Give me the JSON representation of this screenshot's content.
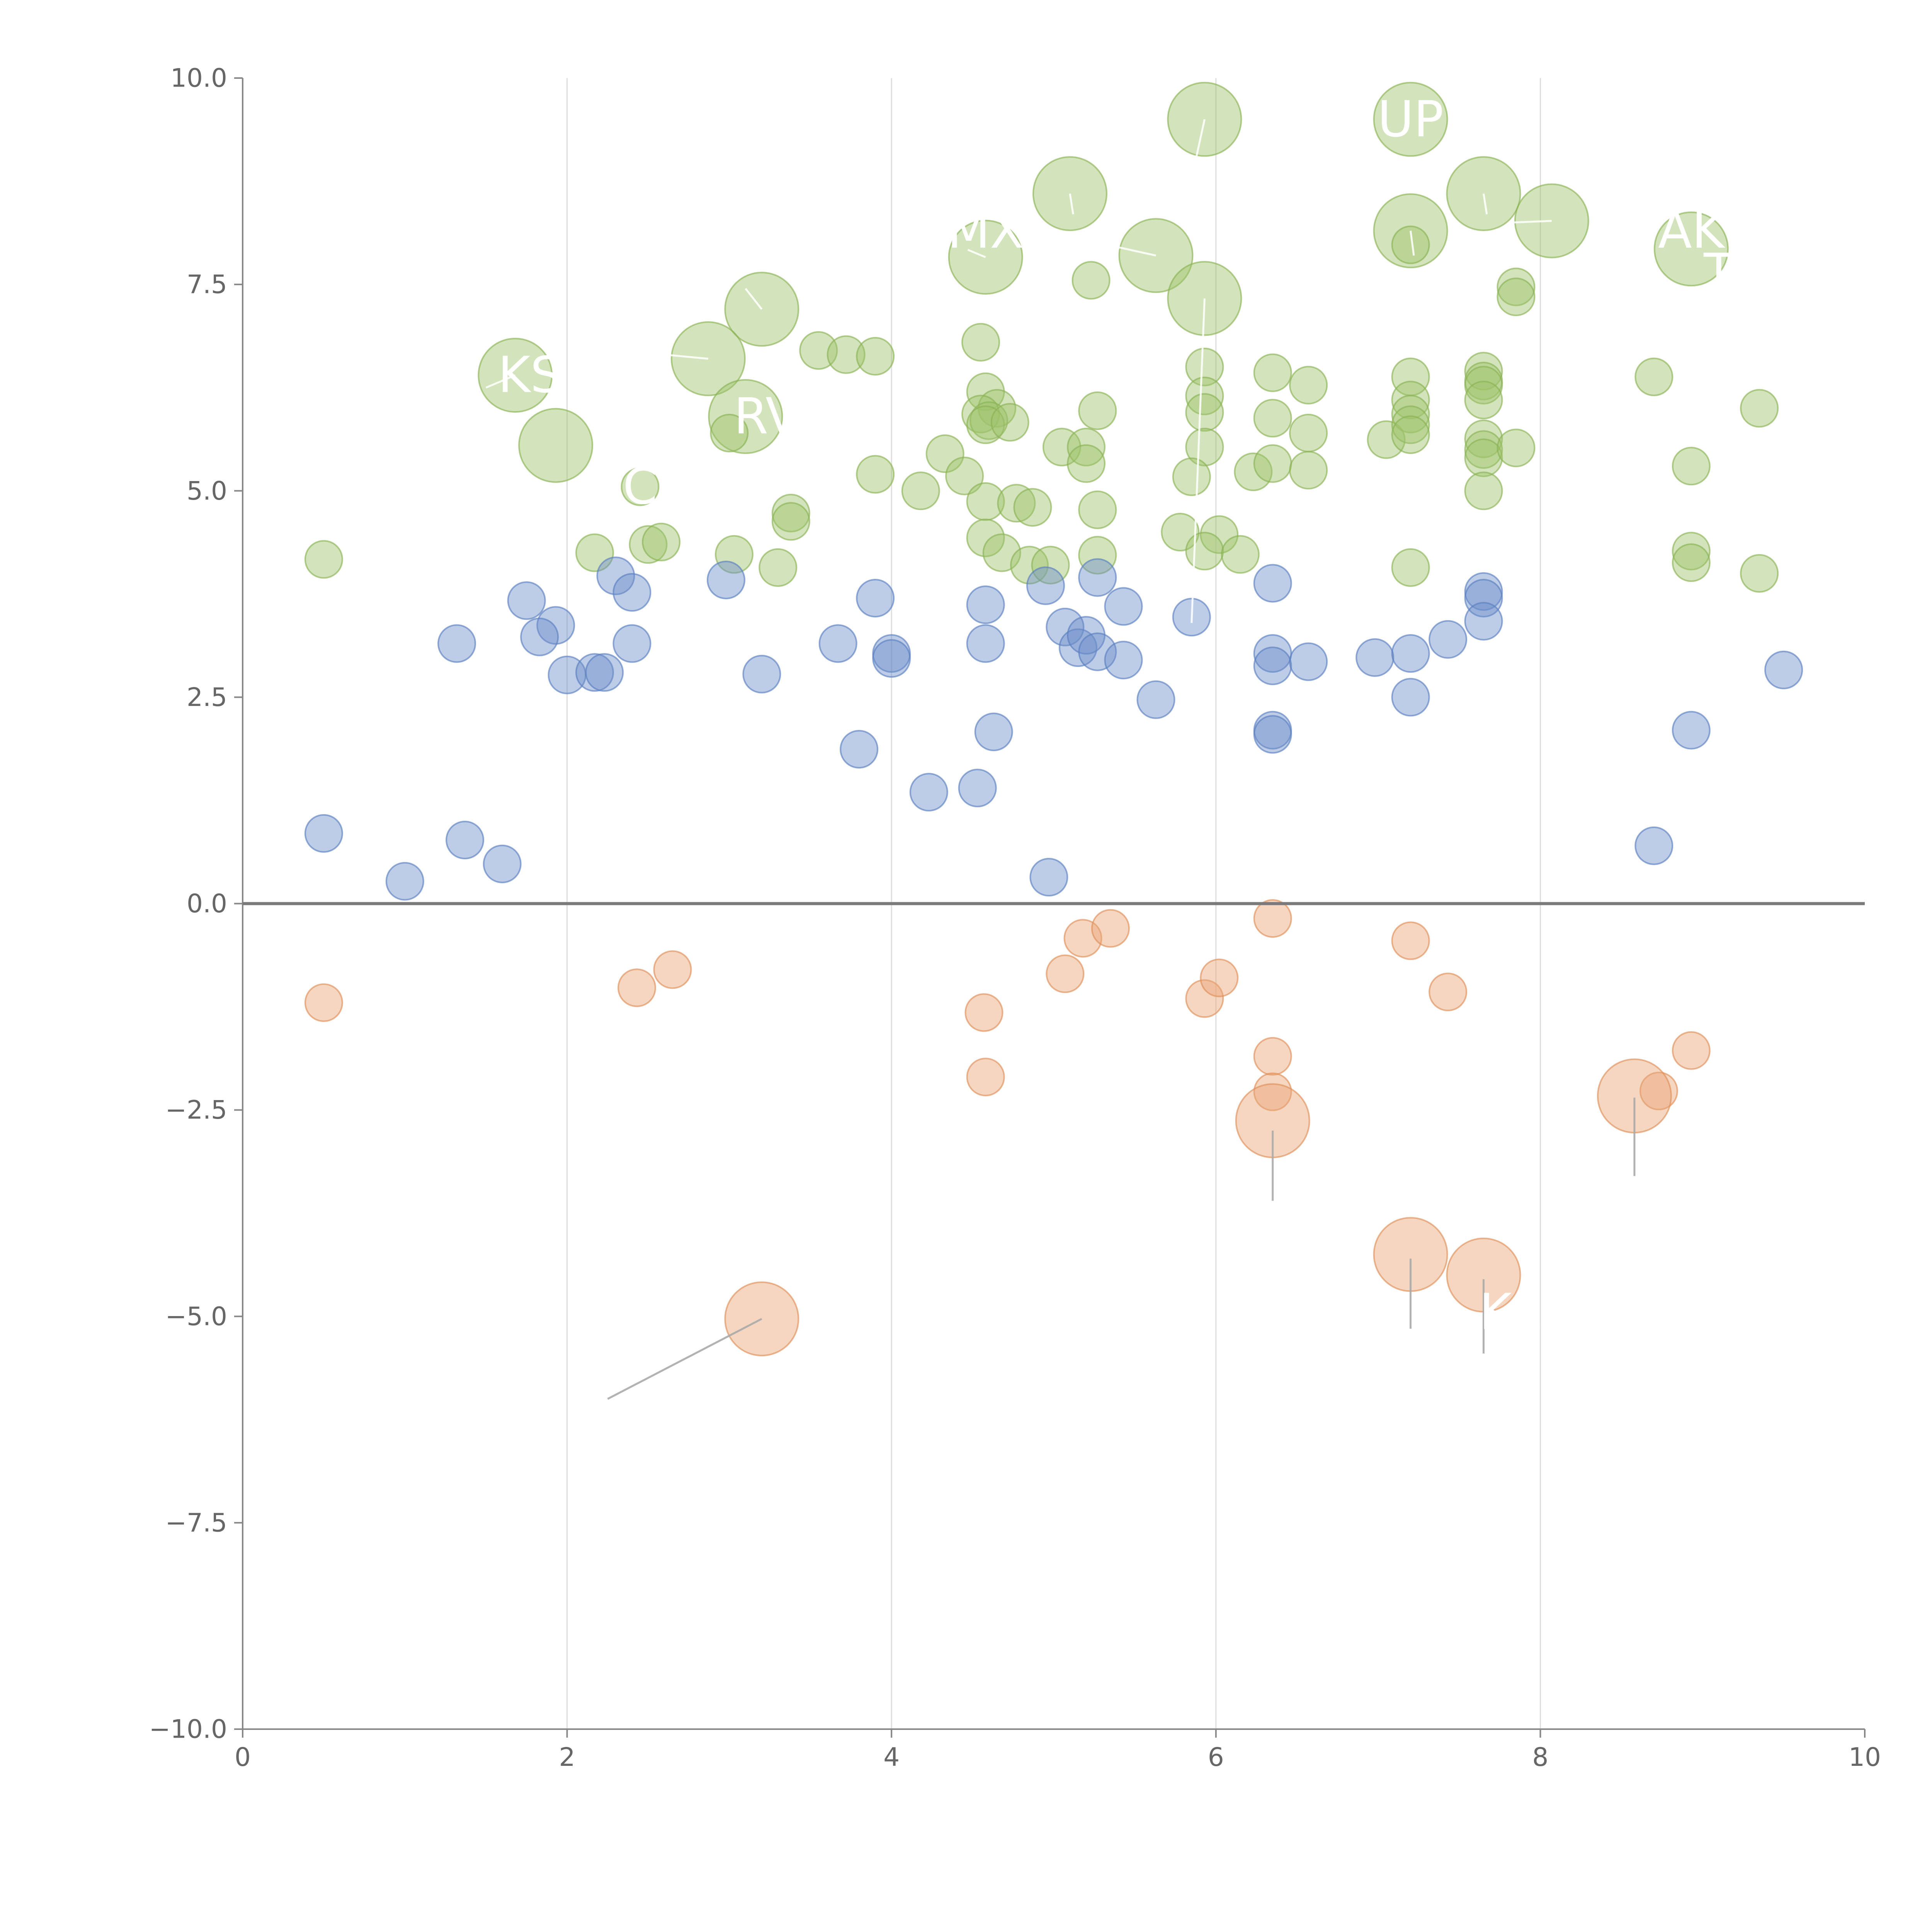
{
  "chart_data": {
    "type": "scatter",
    "title": "",
    "xlabel": "",
    "ylabel": "",
    "xlim": [
      0,
      10
    ],
    "ylim": [
      -10,
      10
    ],
    "x_ticks": [
      {
        "value": 0,
        "label": "0"
      },
      {
        "value": 2,
        "label": "2"
      },
      {
        "value": 4,
        "label": "4"
      },
      {
        "value": 6,
        "label": "6"
      },
      {
        "value": 8,
        "label": "8"
      },
      {
        "value": 10,
        "label": "10"
      }
    ],
    "y_ticks": [
      {
        "value": 10,
        "label": "10.0"
      },
      {
        "value": 7.5,
        "label": "7.5"
      },
      {
        "value": 5,
        "label": "5.0"
      },
      {
        "value": 2.5,
        "label": "2.5"
      },
      {
        "value": 0,
        "label": "0.0"
      },
      {
        "value": -2.5,
        "label": "−2.5"
      },
      {
        "value": -5,
        "label": "−5.0"
      },
      {
        "value": -7.5,
        "label": "−7.5"
      },
      {
        "value": -10,
        "label": "−10.0"
      }
    ],
    "vertical_gridlines_at": [
      2,
      4,
      6,
      8
    ],
    "zero_line": 0,
    "series": [
      {
        "name": "green",
        "color": "#9dc36b",
        "stroke": "#8ab255",
        "points": [
          [
            5.93,
            9.5,
            3
          ],
          [
            7.2,
            9.5,
            3
          ],
          [
            5.1,
            8.6,
            3
          ],
          [
            7.65,
            8.6,
            3
          ],
          [
            8.07,
            8.27,
            3
          ],
          [
            7.2,
            8.15,
            3
          ],
          [
            4.58,
            7.83,
            3
          ],
          [
            5.63,
            7.85,
            3
          ],
          [
            8.93,
            7.93,
            3
          ],
          [
            3.2,
            7.2,
            3
          ],
          [
            5.93,
            7.33,
            3
          ],
          [
            2.87,
            6.6,
            3
          ],
          [
            1.68,
            6.4,
            3
          ],
          [
            1.93,
            5.55,
            3
          ],
          [
            3.1,
            5.9,
            3
          ],
          [
            7.2,
            7.98,
            1
          ],
          [
            5.23,
            7.55,
            1
          ],
          [
            7.85,
            7.47,
            1
          ],
          [
            7.85,
            7.35,
            1
          ],
          [
            3.55,
            6.7,
            1
          ],
          [
            3.72,
            6.65,
            1
          ],
          [
            3.9,
            6.63,
            1
          ],
          [
            4.55,
            6.8,
            1
          ],
          [
            5.93,
            6.5,
            1
          ],
          [
            6.35,
            6.43,
            1
          ],
          [
            6.57,
            6.28,
            1
          ],
          [
            7.2,
            6.38,
            1
          ],
          [
            7.65,
            6.45,
            1
          ],
          [
            7.65,
            6.33,
            1
          ],
          [
            7.65,
            6.28,
            1
          ],
          [
            8.7,
            6.38,
            1
          ],
          [
            9.35,
            6.0,
            1
          ],
          [
            4.58,
            6.2,
            1
          ],
          [
            4.65,
            6.0,
            1
          ],
          [
            4.55,
            5.93,
            1
          ],
          [
            4.6,
            5.85,
            1
          ],
          [
            4.58,
            5.8,
            1
          ],
          [
            4.73,
            5.83,
            1
          ],
          [
            5.27,
            5.97,
            1
          ],
          [
            5.93,
            6.15,
            1
          ],
          [
            5.93,
            5.95,
            1
          ],
          [
            6.35,
            5.88,
            1
          ],
          [
            6.57,
            5.7,
            1
          ],
          [
            7.05,
            5.62,
            1
          ],
          [
            7.2,
            6.1,
            1
          ],
          [
            7.2,
            5.93,
            1
          ],
          [
            7.2,
            5.8,
            1
          ],
          [
            7.2,
            5.68,
            1
          ],
          [
            7.65,
            6.1,
            1
          ],
          [
            7.65,
            5.63,
            1
          ],
          [
            7.65,
            5.5,
            1
          ],
          [
            7.65,
            5.4,
            1
          ],
          [
            7.85,
            5.52,
            1
          ],
          [
            8.93,
            5.3,
            1
          ],
          [
            3.0,
            5.7,
            1
          ],
          [
            4.33,
            5.45,
            1
          ],
          [
            3.9,
            5.2,
            1
          ],
          [
            4.18,
            5.0,
            1
          ],
          [
            4.45,
            5.18,
            1
          ],
          [
            5.05,
            5.53,
            1
          ],
          [
            5.2,
            5.53,
            1
          ],
          [
            5.2,
            5.33,
            1
          ],
          [
            5.93,
            5.53,
            1
          ],
          [
            5.85,
            5.17,
            1
          ],
          [
            6.23,
            5.23,
            1
          ],
          [
            6.35,
            5.33,
            1
          ],
          [
            6.57,
            5.25,
            1
          ],
          [
            7.65,
            5.0,
            1
          ],
          [
            2.45,
            5.05,
            1
          ],
          [
            3.38,
            4.73,
            1
          ],
          [
            3.38,
            4.63,
            1
          ],
          [
            4.58,
            4.87,
            1
          ],
          [
            4.77,
            4.85,
            1
          ],
          [
            4.87,
            4.8,
            1
          ],
          [
            5.27,
            4.77,
            1
          ],
          [
            5.78,
            4.5,
            1
          ],
          [
            6.02,
            4.47,
            1
          ],
          [
            5.93,
            4.27,
            1
          ],
          [
            6.15,
            4.23,
            1
          ],
          [
            4.58,
            4.43,
            1
          ],
          [
            4.68,
            4.25,
            1
          ],
          [
            4.85,
            4.1,
            1
          ],
          [
            4.98,
            4.1,
            1
          ],
          [
            5.27,
            4.22,
            1
          ],
          [
            0.5,
            4.17,
            1
          ],
          [
            2.17,
            4.25,
            1
          ],
          [
            2.5,
            4.35,
            1
          ],
          [
            2.58,
            4.38,
            1
          ],
          [
            3.03,
            4.23,
            1
          ],
          [
            3.3,
            4.07,
            1
          ],
          [
            7.2,
            4.07,
            1
          ],
          [
            8.93,
            4.27,
            1
          ],
          [
            8.93,
            4.13,
            1
          ],
          [
            9.35,
            4.0,
            1
          ]
        ]
      },
      {
        "name": "blue",
        "color": "#6d8fca",
        "stroke": "#5a7fc0",
        "points": [
          [
            1.75,
            3.67,
            1
          ],
          [
            1.93,
            3.37,
            1
          ],
          [
            1.83,
            3.23,
            1
          ],
          [
            1.32,
            3.15,
            1
          ],
          [
            2.3,
            3.97,
            1
          ],
          [
            2.4,
            3.77,
            1
          ],
          [
            2.4,
            3.15,
            1
          ],
          [
            2.0,
            2.77,
            1
          ],
          [
            2.17,
            2.8,
            1
          ],
          [
            2.23,
            2.8,
            1
          ],
          [
            2.98,
            3.92,
            1
          ],
          [
            3.2,
            2.78,
            1
          ],
          [
            3.67,
            3.15,
            1
          ],
          [
            3.9,
            3.7,
            1
          ],
          [
            4.0,
            3.03,
            1
          ],
          [
            4.0,
            2.97,
            1
          ],
          [
            4.58,
            3.62,
            1
          ],
          [
            4.58,
            3.15,
            1
          ],
          [
            4.95,
            3.85,
            1
          ],
          [
            5.07,
            3.35,
            1
          ],
          [
            5.15,
            3.1,
            1
          ],
          [
            5.2,
            3.25,
            1
          ],
          [
            5.27,
            3.05,
            1
          ],
          [
            5.27,
            3.95,
            1
          ],
          [
            5.43,
            3.6,
            1
          ],
          [
            5.43,
            2.95,
            1
          ],
          [
            5.85,
            3.47,
            1
          ],
          [
            6.35,
            3.88,
            1
          ],
          [
            6.35,
            3.03,
            1
          ],
          [
            6.35,
            2.88,
            1
          ],
          [
            6.57,
            2.93,
            1
          ],
          [
            6.98,
            2.98,
            1
          ],
          [
            7.2,
            3.03,
            1
          ],
          [
            7.43,
            3.2,
            1
          ],
          [
            7.65,
            3.78,
            1
          ],
          [
            7.65,
            3.7,
            1
          ],
          [
            7.65,
            3.42,
            1
          ],
          [
            9.5,
            2.83,
            1
          ],
          [
            7.2,
            2.5,
            1
          ],
          [
            5.63,
            2.47,
            1
          ],
          [
            6.35,
            2.1,
            1
          ],
          [
            6.35,
            2.05,
            1
          ],
          [
            8.93,
            2.1,
            1
          ],
          [
            4.63,
            2.08,
            1
          ],
          [
            3.8,
            1.87,
            1
          ],
          [
            4.23,
            1.35,
            1
          ],
          [
            4.53,
            1.4,
            1
          ],
          [
            0.5,
            0.85,
            1
          ],
          [
            1.0,
            0.27,
            1
          ],
          [
            1.37,
            0.77,
            1
          ],
          [
            1.6,
            0.48,
            1
          ],
          [
            4.97,
            0.32,
            1
          ],
          [
            8.7,
            0.7,
            1
          ]
        ]
      },
      {
        "name": "orange",
        "color": "#e8a476",
        "stroke": "#df8f59",
        "points": [
          [
            0.5,
            -1.2,
            1
          ],
          [
            2.43,
            -1.02,
            1
          ],
          [
            2.65,
            -0.8,
            1
          ],
          [
            4.57,
            -1.32,
            1
          ],
          [
            4.58,
            -2.1,
            1
          ],
          [
            5.07,
            -0.85,
            1
          ],
          [
            5.18,
            -0.42,
            1
          ],
          [
            5.35,
            -0.3,
            1
          ],
          [
            5.93,
            -1.15,
            1
          ],
          [
            6.02,
            -0.9,
            1
          ],
          [
            6.35,
            -0.18,
            1
          ],
          [
            6.35,
            -1.85,
            1
          ],
          [
            6.35,
            -2.28,
            1
          ],
          [
            7.2,
            -0.45,
            1
          ],
          [
            7.43,
            -1.07,
            1
          ],
          [
            8.73,
            -2.27,
            1
          ],
          [
            8.93,
            -1.78,
            1
          ],
          [
            6.35,
            -2.63,
            3
          ],
          [
            8.58,
            -2.33,
            3
          ],
          [
            7.2,
            -4.25,
            3
          ],
          [
            7.65,
            -4.5,
            3
          ],
          [
            3.2,
            -5.03,
            3
          ]
        ]
      }
    ],
    "annotations": [
      {
        "text": "UP",
        "x": 7.2,
        "y": 9.5
      },
      {
        "text": "MX",
        "x": 4.58,
        "y": 8.15
      },
      {
        "text": "AK",
        "x": 8.93,
        "y": 8.15
      },
      {
        "text": "T",
        "x": 9.1,
        "y": 7.65
      },
      {
        "text": "KS",
        "x": 1.77,
        "y": 6.4
      },
      {
        "text": "RV",
        "x": 3.23,
        "y": 5.9
      },
      {
        "text": "C",
        "x": 2.45,
        "y": 5.05
      },
      {
        "text": "KE",
        "x": 7.82,
        "y": -4.95
      }
    ]
  }
}
